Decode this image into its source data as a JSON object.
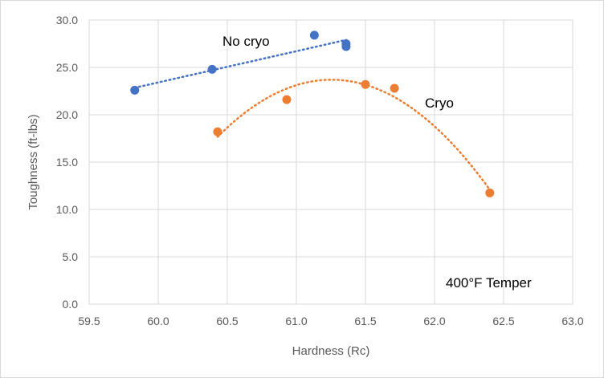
{
  "chart_data": {
    "type": "scatter",
    "title": "",
    "xlabel": "Hardness (Rc)",
    "ylabel": "Toughness (ft-lbs)",
    "xlim": [
      59.5,
      63.0
    ],
    "ylim": [
      0,
      30
    ],
    "xticks": [
      "59.5",
      "60.0",
      "60.5",
      "61.0",
      "61.5",
      "62.0",
      "62.5",
      "63.0"
    ],
    "yticks": [
      "0.0",
      "5.0",
      "10.0",
      "15.0",
      "20.0",
      "25.0",
      "30.0"
    ],
    "grid": true,
    "series": [
      {
        "name": "No cryo",
        "color": "#4472C4",
        "trendline": "linear",
        "x": [
          59.83,
          60.39,
          61.13,
          61.36,
          61.36
        ],
        "y": [
          22.6,
          24.8,
          28.4,
          27.5,
          27.2
        ]
      },
      {
        "name": "Cryo",
        "color": "#ED7D31",
        "trendline": "polynomial-2",
        "x": [
          60.43,
          60.93,
          61.5,
          61.71,
          62.4
        ],
        "y": [
          18.2,
          21.6,
          23.2,
          22.8,
          11.75
        ]
      }
    ],
    "annotations": [
      "No cryo",
      "Cryo",
      "400°F Temper"
    ]
  }
}
